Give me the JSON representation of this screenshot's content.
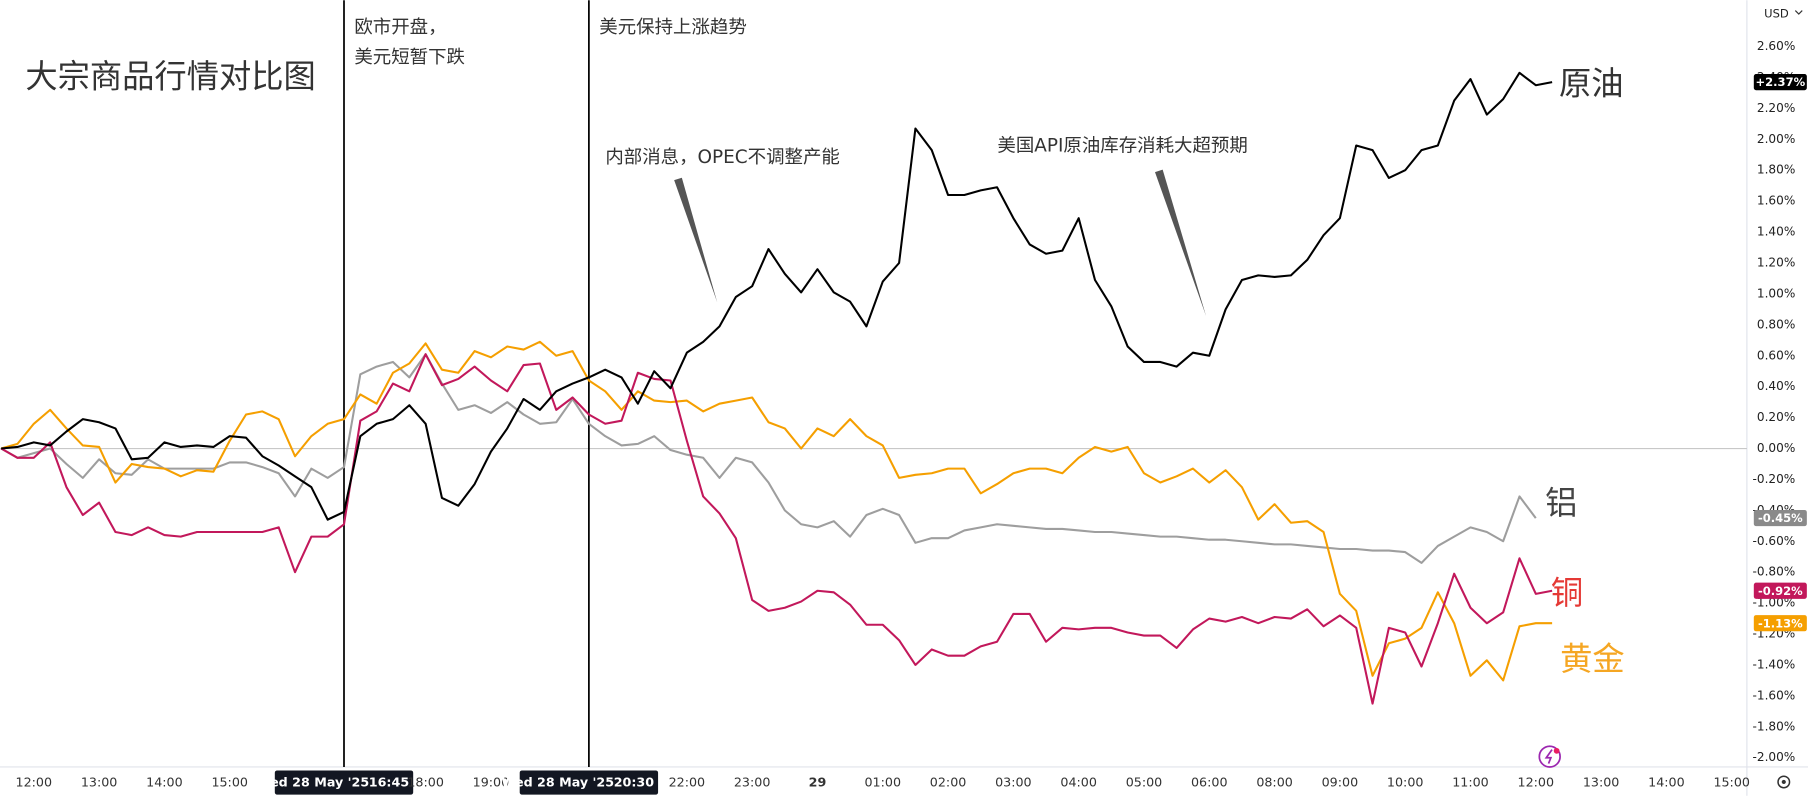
{
  "chart_data": {
    "type": "line",
    "title": "大宗商品行情对比图",
    "currency": "USD",
    "categories": [
      null,
      null,
      "12:00",
      null,
      null,
      null,
      "13:00",
      null,
      null,
      null,
      "14:00",
      null,
      null,
      null,
      "15:00",
      null,
      null,
      null,
      null,
      null,
      null,
      "16:45",
      null,
      null,
      null,
      null,
      "18:00",
      null,
      null,
      null,
      "19:00",
      null,
      null,
      null,
      null,
      null,
      "20:30",
      null,
      null,
      null,
      null,
      null,
      "22:00",
      null,
      null,
      null,
      "23:00",
      null,
      null,
      null,
      "29",
      null,
      null,
      null,
      "01:00",
      null,
      null,
      null,
      "02:00",
      null,
      null,
      null,
      "03:00",
      null,
      null,
      null,
      "04:00",
      null,
      null,
      null,
      "05:00",
      null,
      null,
      null,
      "06:00",
      null,
      null,
      null,
      "08:00",
      null,
      null,
      null,
      "09:00",
      null,
      null,
      null,
      "10:00",
      null,
      null,
      null,
      "11:00",
      null,
      null,
      null,
      "12:00",
      null,
      null,
      null,
      "13:00",
      null,
      null,
      null,
      "14:00",
      null,
      null,
      null,
      "15:00"
    ],
    "markers": [
      {
        "date": "Wed 28 May '25",
        "note": [
          "欧市开盘，",
          "美元短暂下跌"
        ]
      },
      {
        "date": "Wed 28 May '25",
        "note": [
          "美元保持上涨趋势"
        ]
      }
    ],
    "annotations": [
      {
        "text": "内部消息，OPEC不调整产能"
      },
      {
        "text": "美国API原油库存消耗大超预期"
      }
    ],
    "series": [
      {
        "name": "原油",
        "color": "#000000",
        "label_color": "#333333",
        "last_label": "+2.37%",
        "values": [
          0,
          0.01,
          0.04,
          0.02,
          0.11,
          0.19,
          0.17,
          0.13,
          -0.07,
          -0.06,
          0.04,
          0.01,
          0.02,
          0.01,
          0.08,
          0.07,
          -0.05,
          -0.11,
          -0.18,
          -0.25,
          -0.46,
          -0.41,
          0.08,
          0.16,
          0.19,
          0.28,
          0.16,
          -0.32,
          -0.37,
          -0.23,
          -0.02,
          0.13,
          0.32,
          0.25,
          0.37,
          0.42,
          0.46,
          0.51,
          0.46,
          0.29,
          0.5,
          0.39,
          0.62,
          0.69,
          0.79,
          0.98,
          1.05,
          1.29,
          1.13,
          1.01,
          1.16,
          1.01,
          0.95,
          0.79,
          1.08,
          1.2,
          2.07,
          1.93,
          1.64,
          1.64,
          1.67,
          1.69,
          1.49,
          1.32,
          1.26,
          1.28,
          1.49,
          1.09,
          0.92,
          0.66,
          0.56,
          0.56,
          0.53,
          0.62,
          0.6,
          0.9,
          1.09,
          1.12,
          1.11,
          1.12,
          1.22,
          1.38,
          1.49,
          1.96,
          1.93,
          1.75,
          1.8,
          1.93,
          1.96,
          2.25,
          2.39,
          2.16,
          2.26,
          2.43,
          2.35,
          2.37,
          null,
          null,
          null,
          null,
          null,
          null,
          null,
          null,
          null,
          null,
          null
        ]
      },
      {
        "name": "铝",
        "color": "#9e9e9e",
        "label_color": "#444444",
        "last_label": "-0.45%",
        "values": [
          0,
          -0.06,
          -0.03,
          0,
          -0.1,
          -0.19,
          -0.07,
          -0.16,
          -0.17,
          -0.07,
          -0.13,
          -0.13,
          -0.13,
          -0.13,
          -0.09,
          -0.09,
          -0.12,
          -0.16,
          -0.31,
          -0.13,
          -0.19,
          -0.12,
          0.48,
          0.53,
          0.56,
          0.46,
          0.61,
          0.42,
          0.25,
          0.28,
          0.23,
          0.3,
          0.22,
          0.16,
          0.17,
          0.32,
          0.16,
          0.08,
          0.02,
          0.03,
          0.08,
          -0.01,
          -0.04,
          -0.06,
          -0.19,
          -0.06,
          -0.09,
          -0.22,
          -0.4,
          -0.49,
          -0.51,
          -0.47,
          -0.57,
          -0.43,
          -0.39,
          -0.43,
          -0.61,
          -0.58,
          -0.58,
          -0.53,
          -0.51,
          -0.49,
          -0.5,
          -0.51,
          -0.52,
          -0.52,
          -0.53,
          -0.54,
          -0.54,
          -0.55,
          -0.56,
          -0.57,
          -0.57,
          -0.58,
          -0.59,
          -0.59,
          -0.6,
          -0.61,
          -0.62,
          -0.62,
          -0.63,
          -0.64,
          -0.65,
          -0.65,
          -0.66,
          -0.66,
          -0.67,
          -0.74,
          -0.63,
          -0.57,
          -0.51,
          -0.54,
          -0.6,
          -0.31,
          -0.45,
          null,
          null,
          null,
          null,
          null,
          null,
          null,
          null,
          null,
          null,
          null,
          null
        ]
      },
      {
        "name": "铜",
        "color": "#c2185b",
        "label_color": "#e53935",
        "last_label": "-0.92%",
        "values": [
          0,
          -0.06,
          -0.06,
          0.04,
          -0.25,
          -0.43,
          -0.35,
          -0.54,
          -0.56,
          -0.51,
          -0.56,
          -0.57,
          -0.54,
          -0.54,
          -0.54,
          -0.54,
          -0.54,
          -0.51,
          -0.8,
          -0.57,
          -0.57,
          -0.49,
          0.18,
          0.24,
          0.42,
          0.37,
          0.61,
          0.41,
          0.45,
          0.53,
          0.44,
          0.37,
          0.54,
          0.55,
          0.25,
          0.33,
          0.22,
          0.16,
          0.18,
          0.49,
          0.45,
          0.44,
          0.05,
          -0.31,
          -0.42,
          -0.58,
          -0.98,
          -1.05,
          -1.03,
          -0.99,
          -0.92,
          -0.93,
          -1.01,
          -1.14,
          -1.14,
          -1.24,
          -1.4,
          -1.3,
          -1.34,
          -1.34,
          -1.28,
          -1.25,
          -1.07,
          -1.07,
          -1.25,
          -1.16,
          -1.17,
          -1.16,
          -1.16,
          -1.19,
          -1.21,
          -1.21,
          -1.29,
          -1.17,
          -1.1,
          -1.12,
          -1.09,
          -1.13,
          -1.09,
          -1.1,
          -1.04,
          -1.15,
          -1.08,
          -1.16,
          -1.65,
          -1.16,
          -1.19,
          -1.41,
          -1.13,
          -0.81,
          -1.03,
          -1.13,
          -1.06,
          -0.71,
          -0.94,
          -0.92,
          null,
          null,
          null,
          null,
          null,
          null,
          null,
          null,
          null,
          null,
          null
        ]
      },
      {
        "name": "黄金",
        "color": "#f59f00",
        "label_color": "#f5a623",
        "last_label": "-1.13%",
        "values": [
          0,
          0.03,
          0.16,
          0.25,
          0.13,
          0.02,
          0.01,
          -0.22,
          -0.1,
          -0.12,
          -0.13,
          -0.18,
          -0.14,
          -0.15,
          0.05,
          0.22,
          0.24,
          0.19,
          -0.05,
          0.08,
          0.16,
          0.19,
          0.35,
          0.29,
          0.49,
          0.55,
          0.68,
          0.51,
          0.49,
          0.63,
          0.59,
          0.66,
          0.64,
          0.69,
          0.6,
          0.63,
          0.44,
          0.37,
          0.25,
          0.37,
          0.31,
          0.3,
          0.31,
          0.24,
          0.29,
          0.31,
          0.33,
          0.17,
          0.13,
          0,
          0.13,
          0.08,
          0.19,
          0.08,
          0.02,
          -0.19,
          -0.17,
          -0.16,
          -0.13,
          -0.13,
          -0.29,
          -0.23,
          -0.16,
          -0.13,
          -0.13,
          -0.16,
          -0.06,
          0.01,
          -0.02,
          0.01,
          -0.16,
          -0.22,
          -0.18,
          -0.13,
          -0.22,
          -0.14,
          -0.25,
          -0.46,
          -0.36,
          -0.48,
          -0.47,
          -0.54,
          -0.94,
          -1.05,
          -1.47,
          -1.26,
          -1.23,
          -1.16,
          -0.93,
          -1.13,
          -1.47,
          -1.37,
          -1.5,
          -1.15,
          -1.13,
          -1.13,
          null,
          null,
          null,
          null,
          null,
          null,
          null,
          null,
          null,
          null,
          null
        ]
      }
    ],
    "ylim": [
      -2.06,
      2.9
    ],
    "yticks": [
      {
        "value": 2.6,
        "label": "2.60%"
      },
      {
        "value": 2.4,
        "label": "2.40%"
      },
      {
        "value": 2.2,
        "label": "2.20%"
      },
      {
        "value": 2.0,
        "label": "2.00%"
      },
      {
        "value": 1.8,
        "label": "1.80%"
      },
      {
        "value": 1.6,
        "label": "1.60%"
      },
      {
        "value": 1.4,
        "label": "1.40%"
      },
      {
        "value": 1.2,
        "label": "1.20%"
      },
      {
        "value": 1.0,
        "label": "1.00%"
      },
      {
        "value": 0.8,
        "label": "0.80%"
      },
      {
        "value": 0.6,
        "label": "0.60%"
      },
      {
        "value": 0.4,
        "label": "0.40%"
      },
      {
        "value": 0.2,
        "label": "0.20%"
      },
      {
        "value": 0,
        "label": "0.00%"
      },
      {
        "value": -0.2,
        "label": "-0.20%"
      },
      {
        "value": -0.4,
        "label": "-0.40%"
      },
      {
        "value": -0.6,
        "label": "-0.60%"
      },
      {
        "value": -0.8,
        "label": "-0.80%"
      },
      {
        "value": -1.0,
        "label": "-1.00%"
      },
      {
        "value": -1.2,
        "label": "-1.20%"
      },
      {
        "value": -1.4,
        "label": "-1.40%"
      },
      {
        "value": -1.6,
        "label": "-1.60%"
      },
      {
        "value": -1.8,
        "label": "-1.80%"
      },
      {
        "value": -2.0,
        "label": "-2.00%"
      }
    ],
    "grid": false,
    "zero_line": true
  }
}
